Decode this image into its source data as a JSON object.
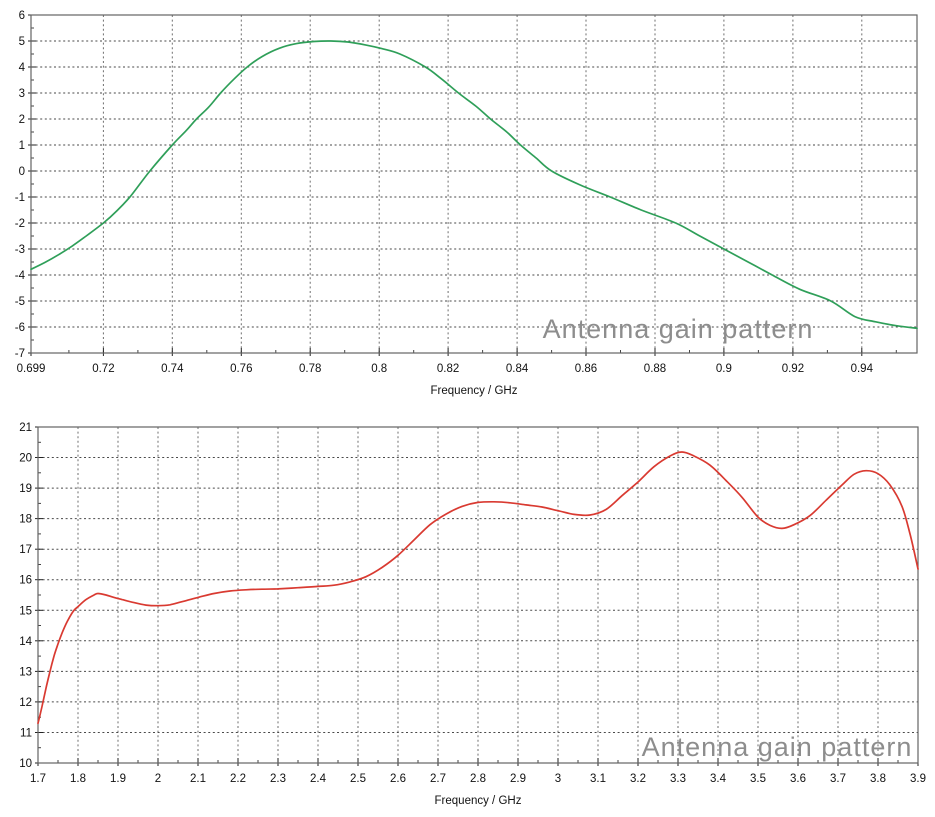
{
  "page": {
    "background": "#ffffff"
  },
  "styles": {
    "horizontal_grid_color": "#4a4a4a",
    "vertical_grid_color": "#6f6f6f",
    "watermark_color": "#8d8d8d",
    "border_color": "#636363",
    "text_color": "#111111"
  },
  "chart_data": [
    {
      "id": "gain-chart-top",
      "type": "line",
      "watermark": "Antenna gain pattern",
      "xlabel": "Frequency / GHz",
      "series_color": "#2f9f59",
      "xlim": [
        0.699,
        0.956
      ],
      "ylim": [
        -7,
        6
      ],
      "x_ticks": {
        "values": [
          0.699,
          0.72,
          0.74,
          0.76,
          0.78,
          0.8,
          0.82,
          0.84,
          0.86,
          0.88,
          0.9,
          0.92,
          0.94
        ],
        "labels": [
          "0.699",
          "0.72",
          "0.74",
          "0.76",
          "0.78",
          "0.8",
          "0.82",
          "0.84",
          "0.86",
          "0.88",
          "0.9",
          "0.92",
          "0.94"
        ]
      },
      "y_ticks": {
        "values": [
          6,
          5,
          4,
          3,
          2,
          1,
          0,
          -1,
          -2,
          -3,
          -4,
          -5,
          -6,
          -7
        ],
        "labels": [
          "6",
          "5",
          "4",
          "3",
          "2",
          "1",
          "0",
          "-1",
          "-2",
          "-3",
          "-4",
          "-5",
          "-6",
          "-7"
        ]
      },
      "x_minor_ticks": [
        0.71,
        0.73,
        0.75,
        0.77,
        0.79,
        0.81,
        0.83,
        0.85,
        0.87,
        0.89,
        0.91,
        0.93,
        0.95
      ],
      "y_minor_ticks": [
        5.5,
        4.5,
        3.5,
        2.5,
        1.5,
        0.5,
        -0.5,
        -1.5,
        -2.5,
        -3.5,
        -4.5,
        -5.5,
        -6.5
      ],
      "points": [
        [
          0.699,
          -3.78
        ],
        [
          0.703,
          -3.52
        ],
        [
          0.707,
          -3.22
        ],
        [
          0.711,
          -2.88
        ],
        [
          0.715,
          -2.5
        ],
        [
          0.72,
          -2.0
        ],
        [
          0.724,
          -1.52
        ],
        [
          0.728,
          -0.95
        ],
        [
          0.7335,
          0.0
        ],
        [
          0.74,
          1.0
        ],
        [
          0.744,
          1.55
        ],
        [
          0.747,
          2.0
        ],
        [
          0.7505,
          2.45
        ],
        [
          0.754,
          3.0
        ],
        [
          0.758,
          3.55
        ],
        [
          0.7617,
          4.0
        ],
        [
          0.766,
          4.4
        ],
        [
          0.771,
          4.72
        ],
        [
          0.776,
          4.9
        ],
        [
          0.781,
          4.98
        ],
        [
          0.786,
          5.0
        ],
        [
          0.791,
          4.96
        ],
        [
          0.796,
          4.85
        ],
        [
          0.801,
          4.7
        ],
        [
          0.806,
          4.5
        ],
        [
          0.8134,
          4.0
        ],
        [
          0.818,
          3.55
        ],
        [
          0.823,
          3.0
        ],
        [
          0.828,
          2.5
        ],
        [
          0.8323,
          2.0
        ],
        [
          0.837,
          1.5
        ],
        [
          0.841,
          1.0
        ],
        [
          0.8455,
          0.5
        ],
        [
          0.85,
          0.0
        ],
        [
          0.858,
          -0.52
        ],
        [
          0.867,
          -1.0
        ],
        [
          0.876,
          -1.5
        ],
        [
          0.886,
          -2.0
        ],
        [
          0.893,
          -2.5
        ],
        [
          0.9,
          -3.0
        ],
        [
          0.907,
          -3.5
        ],
        [
          0.914,
          -4.0
        ],
        [
          0.922,
          -4.55
        ],
        [
          0.931,
          -5.0
        ],
        [
          0.938,
          -5.6
        ],
        [
          0.944,
          -5.8
        ],
        [
          0.95,
          -5.95
        ],
        [
          0.956,
          -6.05
        ]
      ]
    },
    {
      "id": "gain-chart-bottom",
      "type": "line",
      "watermark": "Antenna gain pattern",
      "xlabel": "Frequency / GHz",
      "series_color": "#d93a31",
      "xlim": [
        1.7,
        3.9
      ],
      "ylim": [
        10,
        21
      ],
      "x_ticks": {
        "values": [
          1.7,
          1.8,
          1.9,
          2,
          2.1,
          2.2,
          2.3,
          2.4,
          2.5,
          2.6,
          2.7,
          2.8,
          2.9,
          3,
          3.1,
          3.2,
          3.3,
          3.4,
          3.5,
          3.6,
          3.7,
          3.8,
          3.9
        ],
        "labels": [
          "1.7",
          "1.8",
          "1.9",
          "2",
          "2.1",
          "2.2",
          "2.3",
          "2.4",
          "2.5",
          "2.6",
          "2.7",
          "2.8",
          "2.9",
          "3",
          "3.1",
          "3.2",
          "3.3",
          "3.4",
          "3.5",
          "3.6",
          "3.7",
          "3.8",
          "3.9"
        ]
      },
      "y_ticks": {
        "values": [
          21,
          20,
          19,
          18,
          17,
          16,
          15,
          14,
          13,
          12,
          11,
          10
        ],
        "labels": [
          "21",
          "20",
          "19",
          "18",
          "17",
          "16",
          "15",
          "14",
          "13",
          "12",
          "11",
          "10"
        ]
      },
      "x_minor_ticks": [
        1.75,
        1.85,
        1.95,
        2.05,
        2.15,
        2.25,
        2.35,
        2.45,
        2.55,
        2.65,
        2.75,
        2.85,
        2.95,
        3.05,
        3.15,
        3.25,
        3.35,
        3.45,
        3.55,
        3.65,
        3.75,
        3.85
      ],
      "y_minor_ticks": [
        20.5,
        19.5,
        18.5,
        17.5,
        16.5,
        15.5,
        14.5,
        13.5,
        12.5,
        11.5,
        10.5
      ],
      "points": [
        [
          1.7,
          11.3
        ],
        [
          1.71,
          11.85
        ],
        [
          1.72,
          12.45
        ],
        [
          1.73,
          13.0
        ],
        [
          1.74,
          13.5
        ],
        [
          1.75,
          13.9
        ],
        [
          1.76,
          14.25
        ],
        [
          1.77,
          14.55
        ],
        [
          1.78,
          14.8
        ],
        [
          1.79,
          15.0
        ],
        [
          1.8,
          15.12
        ],
        [
          1.82,
          15.35
        ],
        [
          1.84,
          15.5
        ],
        [
          1.85,
          15.55
        ],
        [
          1.87,
          15.5
        ],
        [
          1.89,
          15.42
        ],
        [
          1.91,
          15.35
        ],
        [
          1.94,
          15.25
        ],
        [
          1.97,
          15.17
        ],
        [
          2.0,
          15.15
        ],
        [
          2.03,
          15.18
        ],
        [
          2.06,
          15.28
        ],
        [
          2.1,
          15.42
        ],
        [
          2.14,
          15.55
        ],
        [
          2.18,
          15.63
        ],
        [
          2.22,
          15.67
        ],
        [
          2.26,
          15.69
        ],
        [
          2.3,
          15.7
        ],
        [
          2.35,
          15.74
        ],
        [
          2.4,
          15.78
        ],
        [
          2.44,
          15.82
        ],
        [
          2.48,
          15.93
        ],
        [
          2.52,
          16.1
        ],
        [
          2.56,
          16.4
        ],
        [
          2.6,
          16.8
        ],
        [
          2.64,
          17.3
        ],
        [
          2.68,
          17.8
        ],
        [
          2.72,
          18.15
        ],
        [
          2.76,
          18.4
        ],
        [
          2.8,
          18.53
        ],
        [
          2.84,
          18.55
        ],
        [
          2.88,
          18.52
        ],
        [
          2.92,
          18.45
        ],
        [
          2.96,
          18.38
        ],
        [
          3.0,
          18.26
        ],
        [
          3.04,
          18.14
        ],
        [
          3.08,
          18.12
        ],
        [
          3.12,
          18.3
        ],
        [
          3.16,
          18.75
        ],
        [
          3.2,
          19.2
        ],
        [
          3.24,
          19.7
        ],
        [
          3.28,
          20.05
        ],
        [
          3.31,
          20.18
        ],
        [
          3.34,
          20.05
        ],
        [
          3.38,
          19.75
        ],
        [
          3.42,
          19.25
        ],
        [
          3.46,
          18.7
        ],
        [
          3.5,
          18.05
        ],
        [
          3.53,
          17.78
        ],
        [
          3.56,
          17.68
        ],
        [
          3.59,
          17.8
        ],
        [
          3.63,
          18.1
        ],
        [
          3.67,
          18.6
        ],
        [
          3.71,
          19.1
        ],
        [
          3.74,
          19.45
        ],
        [
          3.77,
          19.57
        ],
        [
          3.8,
          19.47
        ],
        [
          3.83,
          19.1
        ],
        [
          3.86,
          18.4
        ],
        [
          3.88,
          17.5
        ],
        [
          3.9,
          16.35
        ]
      ]
    }
  ]
}
